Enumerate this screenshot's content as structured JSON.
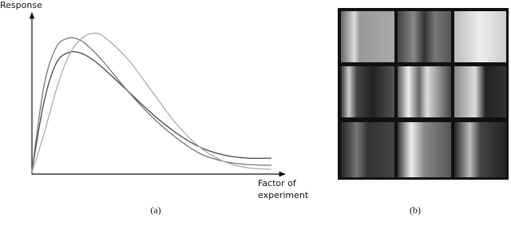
{
  "chart_data": {
    "type": "line",
    "y_label": "Response",
    "x_label": "Factor of experiment",
    "x": [
      0,
      0.5,
      1,
      1.5,
      2,
      2.5,
      3,
      4,
      5,
      6,
      7,
      8,
      9,
      10
    ],
    "xlim": [
      0,
      10.5
    ],
    "ylim": [
      0,
      10
    ],
    "series": [
      {
        "color": "#444444",
        "values": [
          0.2,
          4.5,
          6.9,
          7.6,
          7.6,
          7.2,
          6.6,
          5.2,
          3.8,
          2.6,
          1.7,
          1.2,
          1.0,
          1.0
        ]
      },
      {
        "color": "#777777",
        "values": [
          0.2,
          5.5,
          7.9,
          8.5,
          8.4,
          7.8,
          7.0,
          5.2,
          3.6,
          2.3,
          1.3,
          0.8,
          0.6,
          0.55
        ]
      },
      {
        "color": "#aaaaaa",
        "values": [
          0.1,
          2.5,
          5.2,
          7.3,
          8.4,
          8.8,
          8.6,
          7.2,
          5.2,
          3.2,
          1.7,
          0.8,
          0.4,
          0.3
        ]
      }
    ]
  },
  "captions": [
    "(a)",
    "(b)"
  ]
}
